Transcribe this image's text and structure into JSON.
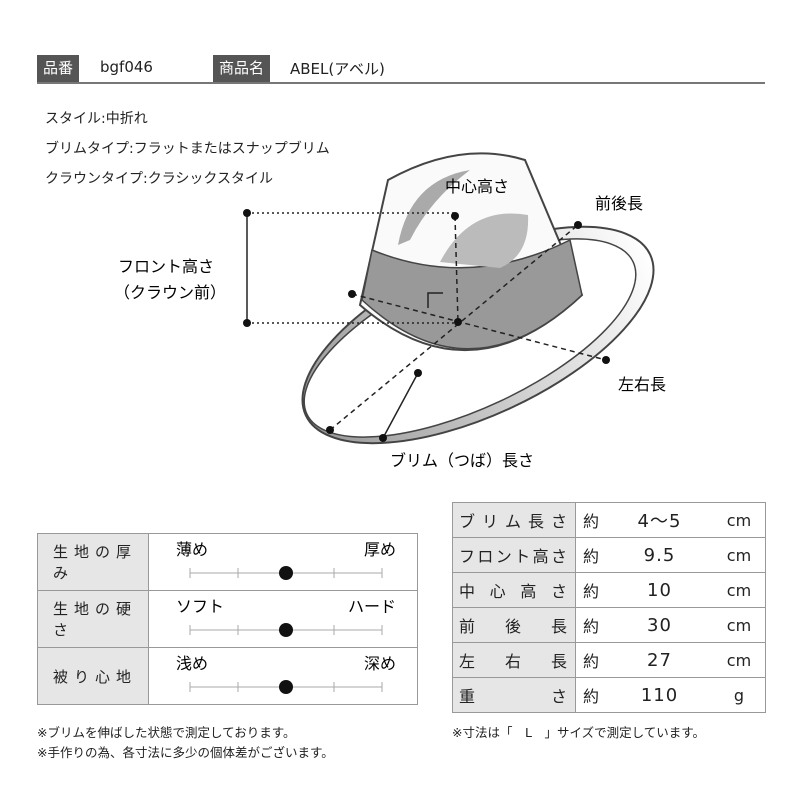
{
  "header": {
    "code_label": "品番",
    "code": "bgf046",
    "name_label": "商品名",
    "name": "ABEL(アベル)"
  },
  "styles": [
    "スタイル:中折れ",
    "ブリムタイプ:フラットまたはスナップブリム",
    "クラウンタイプ:クラシックスタイル"
  ],
  "diagram": {
    "crown_height": "中心高さ",
    "front_back": "前後長",
    "front_height": [
      "フロント高さ",
      "（クラウン前）"
    ],
    "left_right": "左右長",
    "brim_length": "ブリム（つば）長さ"
  },
  "feel": {
    "levels": 5,
    "rows": [
      {
        "label": "生地の厚み",
        "left": "薄め",
        "right": "厚め",
        "level": 3
      },
      {
        "label": "生地の硬さ",
        "left": "ソフト",
        "right": "ハード",
        "level": 3
      },
      {
        "label": "被り心地",
        "left": "浅め",
        "right": "深め",
        "level": 3
      }
    ]
  },
  "sizes": {
    "rows": [
      [
        "ブリム長さ",
        "約",
        "4～5",
        "cm"
      ],
      [
        "フロント高さ",
        "約",
        "9.5",
        "cm"
      ],
      [
        "中心高さ",
        "約",
        "10",
        "cm"
      ],
      [
        "前後長",
        "約",
        "30",
        "cm"
      ],
      [
        "左右長",
        "約",
        "27",
        "cm"
      ],
      [
        "重さ",
        "約",
        "110",
        "g"
      ]
    ]
  },
  "notes": [
    "※ブリムを伸ばした状態で測定しております。",
    "※手作りの為、各寸法に多少の個体差がございます。"
  ],
  "size_note": "※寸法は「　L　」サイズで測定しています。"
}
